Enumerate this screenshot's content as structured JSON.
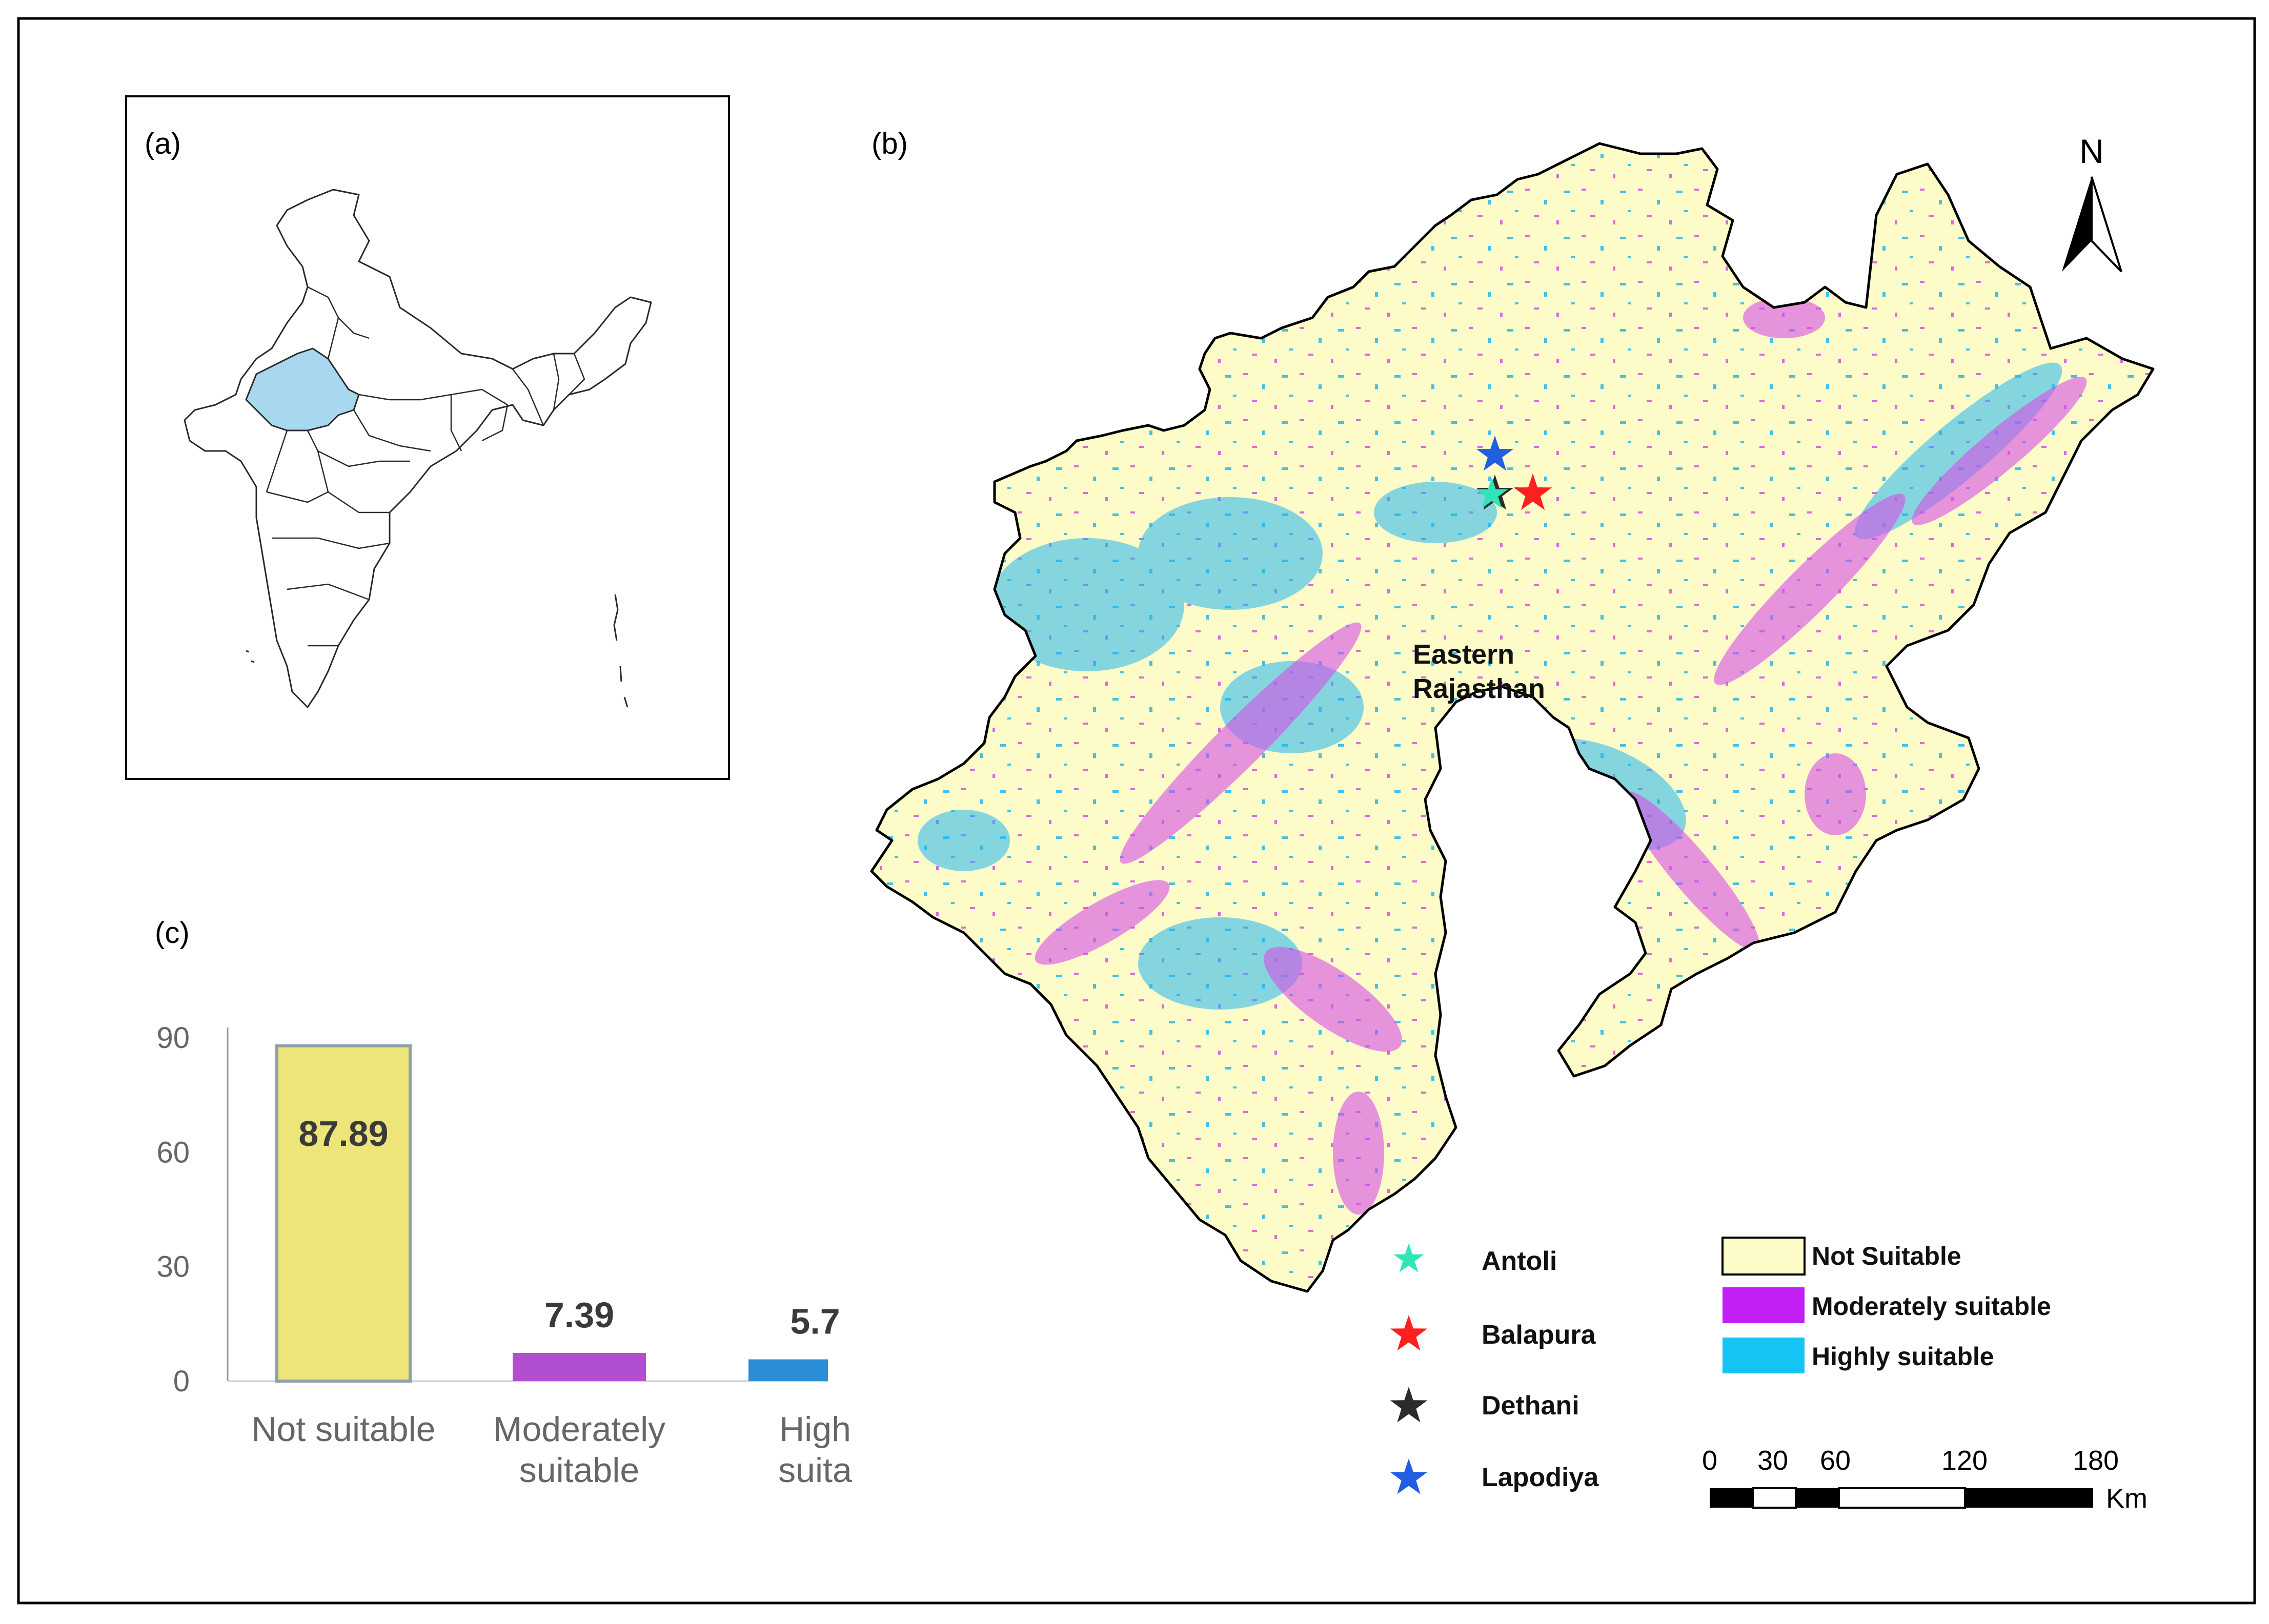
{
  "panels": {
    "a": {
      "label": "(a)"
    },
    "b": {
      "label": "(b)",
      "region_label_line1": "Eastern",
      "region_label_line2": "Rajasthan"
    },
    "c": {
      "label": "(c)"
    }
  },
  "north_arrow": {
    "label": "N"
  },
  "site_legend": {
    "items": [
      {
        "name": "Antoli",
        "color": "#2ee6b8"
      },
      {
        "name": "Balapura",
        "color": "#ff1f1f"
      },
      {
        "name": "Dethani",
        "color": "#2b2b2b"
      },
      {
        "name": "Lapodiya",
        "color": "#1f5fe0"
      }
    ]
  },
  "suitability_legend": {
    "items": [
      {
        "label": "Not Suitable",
        "color": "#fdfbc8"
      },
      {
        "label": "Moderately suitable",
        "color": "#c21ff5"
      },
      {
        "label": "Highly suitable",
        "color": "#15c3f5"
      }
    ]
  },
  "scale_bar": {
    "ticks": [
      "0",
      "30",
      "60",
      "120",
      "180"
    ],
    "unit": "Km"
  },
  "colors": {
    "highlight_state": "#a8d8ef",
    "not_suitable": "#fdfbc8",
    "moderately_suitable": "#d64fe8",
    "highly_suitable": "#23b7f0"
  },
  "chart_data": {
    "type": "bar",
    "categories": [
      "Not suitable",
      "Moderately suitable",
      "Highly suitable"
    ],
    "category_lines": [
      [
        "Not suitable"
      ],
      [
        "Moderately",
        "suitable"
      ],
      [
        "High",
        "suita"
      ]
    ],
    "values": [
      87.89,
      7.39,
      5.7
    ],
    "value_labels": [
      "87.89",
      "7.39",
      "5.7"
    ],
    "bar_colors": [
      "#ede57a",
      "#b24fd0",
      "#2b8ed6"
    ],
    "ylim": [
      0,
      90
    ],
    "yticks": [
      "0",
      "30",
      "60",
      "90"
    ],
    "title": "",
    "xlabel": "",
    "ylabel": ""
  }
}
